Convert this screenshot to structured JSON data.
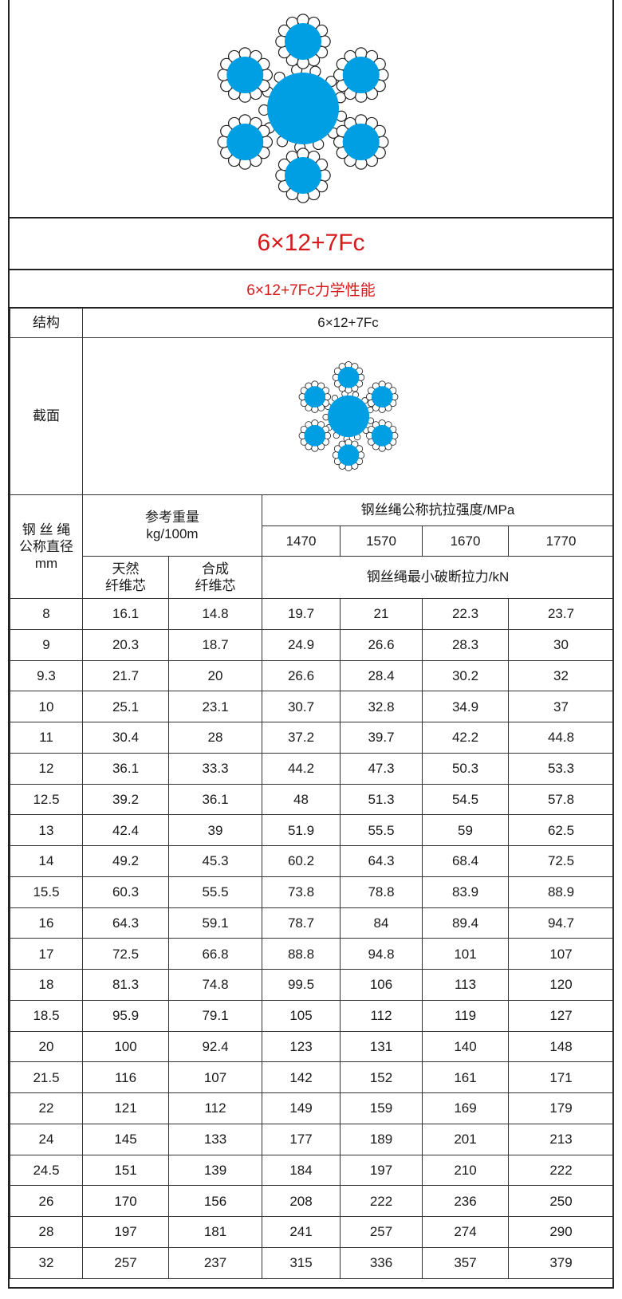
{
  "title": "6×12+7Fc",
  "subtitle": "6×12+7Fc力学性能",
  "colors": {
    "strand_fill": "#009fe3",
    "wire_fill": "#ffffff",
    "title_red": "#d7191a",
    "border": "#222222"
  },
  "structure": {
    "label": "结构",
    "value": "6×12+7Fc"
  },
  "section": {
    "label": "截面"
  },
  "header": {
    "diameter": [
      "钢 丝 绳",
      "公称直径",
      "mm"
    ],
    "weight": [
      "参考重量",
      "kg/100m"
    ],
    "natural_core": [
      "天然",
      "纤维芯"
    ],
    "synthetic_core": [
      "合成",
      "纤维芯"
    ],
    "strength": "钢丝绳公称抗拉强度/MPa",
    "grades": [
      "1470",
      "1570",
      "1670",
      "1770"
    ],
    "breaking_force": "钢丝绳最小破断拉力/kN"
  },
  "rows": [
    [
      "8",
      "16.1",
      "14.8",
      "19.7",
      "21",
      "22.3",
      "23.7"
    ],
    [
      "9",
      "20.3",
      "18.7",
      "24.9",
      "26.6",
      "28.3",
      "30"
    ],
    [
      "9.3",
      "21.7",
      "20",
      "26.6",
      "28.4",
      "30.2",
      "32"
    ],
    [
      "10",
      "25.1",
      "23.1",
      "30.7",
      "32.8",
      "34.9",
      "37"
    ],
    [
      "11",
      "30.4",
      "28",
      "37.2",
      "39.7",
      "42.2",
      "44.8"
    ],
    [
      "12",
      "36.1",
      "33.3",
      "44.2",
      "47.3",
      "50.3",
      "53.3"
    ],
    [
      "12.5",
      "39.2",
      "36.1",
      "48",
      "51.3",
      "54.5",
      "57.8"
    ],
    [
      "13",
      "42.4",
      "39",
      "51.9",
      "55.5",
      "59",
      "62.5"
    ],
    [
      "14",
      "49.2",
      "45.3",
      "60.2",
      "64.3",
      "68.4",
      "72.5"
    ],
    [
      "15.5",
      "60.3",
      "55.5",
      "73.8",
      "78.8",
      "83.9",
      "88.9"
    ],
    [
      "16",
      "64.3",
      "59.1",
      "78.7",
      "84",
      "89.4",
      "94.7"
    ],
    [
      "17",
      "72.5",
      "66.8",
      "88.8",
      "94.8",
      "101",
      "107"
    ],
    [
      "18",
      "81.3",
      "74.8",
      "99.5",
      "106",
      "113",
      "120"
    ],
    [
      "18.5",
      "95.9",
      "79.1",
      "105",
      "112",
      "119",
      "127"
    ],
    [
      "20",
      "100",
      "92.4",
      "123",
      "131",
      "140",
      "148"
    ],
    [
      "21.5",
      "116",
      "107",
      "142",
      "152",
      "161",
      "171"
    ],
    [
      "22",
      "121",
      "112",
      "149",
      "159",
      "169",
      "179"
    ],
    [
      "24",
      "145",
      "133",
      "177",
      "189",
      "201",
      "213"
    ],
    [
      "24.5",
      "151",
      "139",
      "184",
      "197",
      "210",
      "222"
    ],
    [
      "26",
      "170",
      "156",
      "208",
      "222",
      "236",
      "250"
    ],
    [
      "28",
      "197",
      "181",
      "241",
      "257",
      "274",
      "290"
    ],
    [
      "32",
      "257",
      "237",
      "315",
      "336",
      "357",
      "379"
    ]
  ]
}
